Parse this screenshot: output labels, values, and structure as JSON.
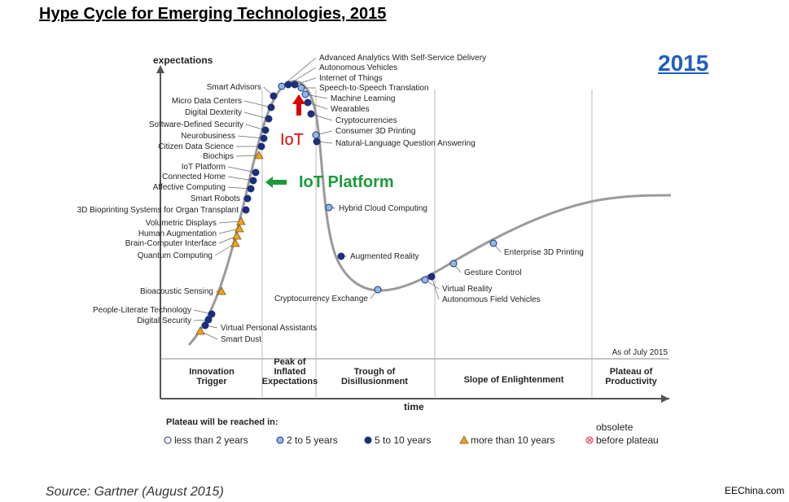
{
  "page": {
    "title": "Hype Cycle for Emerging Technologies, 2015",
    "year_badge": "2015",
    "source": "Source: Gartner (August 2015)",
    "brand": "EEChina.com"
  },
  "colors": {
    "less_than_2": "#ffffff",
    "two_to_5": "#8fbbe0",
    "five_to_10": "#1b2f7a",
    "more_than_10": "#f0a020",
    "obsolete": "#e03030",
    "curve": "#9a9a9a",
    "iot_arrow": "#e00000",
    "iot_platform_arrow": "#1a9a3a",
    "title_blue": "#1f5fbf"
  },
  "chart_data": {
    "type": "scatter",
    "ylabel": "expectations",
    "xlabel": "time",
    "as_of": "As of July 2015",
    "phases": [
      "Innovation Trigger",
      "Peak of Inflated Expectations",
      "Trough of Disillusionment",
      "Slope of Enlightenment",
      "Plateau of Productivity"
    ],
    "legend": {
      "title": "Plateau will be reached in:",
      "items": [
        {
          "key": "less_than_2",
          "label": "less than 2 years",
          "marker": "circle"
        },
        {
          "key": "two_to_5",
          "label": "2 to 5 years",
          "marker": "circle"
        },
        {
          "key": "five_to_10",
          "label": "5 to 10 years",
          "marker": "circle"
        },
        {
          "key": "more_than_10",
          "label": "more than 10 years",
          "marker": "triangle"
        },
        {
          "key": "obsolete",
          "label": "obsolete before plateau",
          "marker": "cross"
        }
      ]
    },
    "technologies": [
      {
        "name": "Smart Dust",
        "plateau": "more_than_10"
      },
      {
        "name": "Virtual Personal Assistants",
        "plateau": "five_to_10"
      },
      {
        "name": "Digital Security",
        "plateau": "five_to_10"
      },
      {
        "name": "People-Literate Technology",
        "plateau": "five_to_10"
      },
      {
        "name": "Bioacoustic Sensing",
        "plateau": "more_than_10"
      },
      {
        "name": "Quantum Computing",
        "plateau": "more_than_10"
      },
      {
        "name": "Brain-Computer Interface",
        "plateau": "more_than_10"
      },
      {
        "name": "Human Augmentation",
        "plateau": "more_than_10"
      },
      {
        "name": "Volumetric Displays",
        "plateau": "more_than_10"
      },
      {
        "name": "3D Bioprinting Systems for Organ Transplant",
        "plateau": "five_to_10"
      },
      {
        "name": "Smart Robots",
        "plateau": "five_to_10"
      },
      {
        "name": "Affective Computing",
        "plateau": "five_to_10"
      },
      {
        "name": "Connected Home",
        "plateau": "five_to_10"
      },
      {
        "name": "IoT Platform",
        "plateau": "five_to_10"
      },
      {
        "name": "Biochips",
        "plateau": "more_than_10"
      },
      {
        "name": "Citizen Data Science",
        "plateau": "five_to_10"
      },
      {
        "name": "Neurobusiness",
        "plateau": "five_to_10"
      },
      {
        "name": "Software-Defined Security",
        "plateau": "five_to_10"
      },
      {
        "name": "Digital Dexterity",
        "plateau": "five_to_10"
      },
      {
        "name": "Micro Data Centers",
        "plateau": "five_to_10"
      },
      {
        "name": "Smart Advisors",
        "plateau": "five_to_10"
      },
      {
        "name": "Advanced Analytics With Self-Service Delivery",
        "plateau": "two_to_5"
      },
      {
        "name": "Autonomous Vehicles",
        "plateau": "five_to_10"
      },
      {
        "name": "Internet of Things",
        "plateau": "five_to_10"
      },
      {
        "name": "Speech-to-Speech Translation",
        "plateau": "two_to_5"
      },
      {
        "name": "Machine Learning",
        "plateau": "two_to_5"
      },
      {
        "name": "Wearables",
        "plateau": "five_to_10"
      },
      {
        "name": "Cryptocurrencies",
        "plateau": "five_to_10"
      },
      {
        "name": "Consumer 3D Printing",
        "plateau": "two_to_5"
      },
      {
        "name": "Natural-Language Question Answering",
        "plateau": "five_to_10"
      },
      {
        "name": "Hybrid Cloud Computing",
        "plateau": "two_to_5"
      },
      {
        "name": "Augmented Reality",
        "plateau": "five_to_10"
      },
      {
        "name": "Cryptocurrency Exchange",
        "plateau": "two_to_5"
      },
      {
        "name": "Virtual Reality",
        "plateau": "two_to_5"
      },
      {
        "name": "Autonomous Field Vehicles",
        "plateau": "five_to_10"
      },
      {
        "name": "Gesture Control",
        "plateau": "two_to_5"
      },
      {
        "name": "Enterprise 3D Printing",
        "plateau": "two_to_5"
      }
    ],
    "annotations": [
      {
        "text": "IoT",
        "points_to": "Internet of Things"
      },
      {
        "text": "IoT Platform",
        "points_to": "IoT Platform"
      }
    ]
  }
}
